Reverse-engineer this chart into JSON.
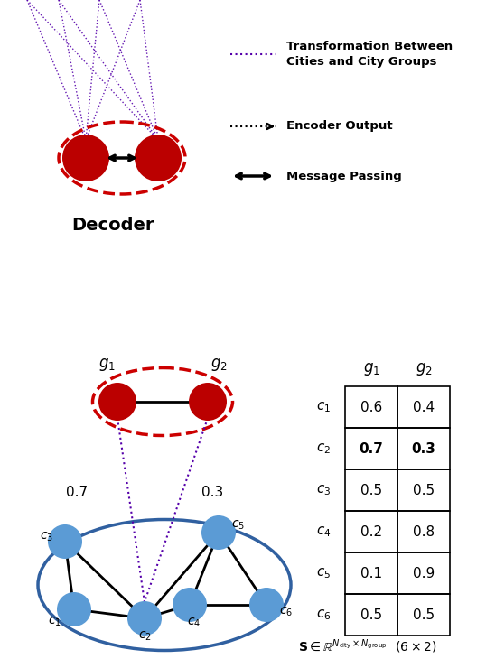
{
  "bg_color": "#ffffff",
  "red_node_color": "#bb0000",
  "blue_node_color": "#5b9bd5",
  "red_ellipse_color": "#cc0000",
  "blue_ellipse_color": "#3060a0",
  "purple_line_color": "#5500aa",
  "black_line_color": "#000000",
  "table_data": [
    [
      "0.6",
      "0.4"
    ],
    [
      "0.7",
      "0.3"
    ],
    [
      "0.5",
      "0.5"
    ],
    [
      "0.2",
      "0.8"
    ],
    [
      "0.1",
      "0.9"
    ],
    [
      "0.5",
      "0.5"
    ]
  ],
  "table_row_labels": [
    "$c_1$",
    "$c_2$",
    "$c_3$",
    "$c_4$",
    "$c_5$",
    "$c_6$"
  ],
  "table_col_labels": [
    "$g_1$",
    "$g_2$"
  ],
  "bold_row": 1,
  "decoder_label": "Decoder"
}
